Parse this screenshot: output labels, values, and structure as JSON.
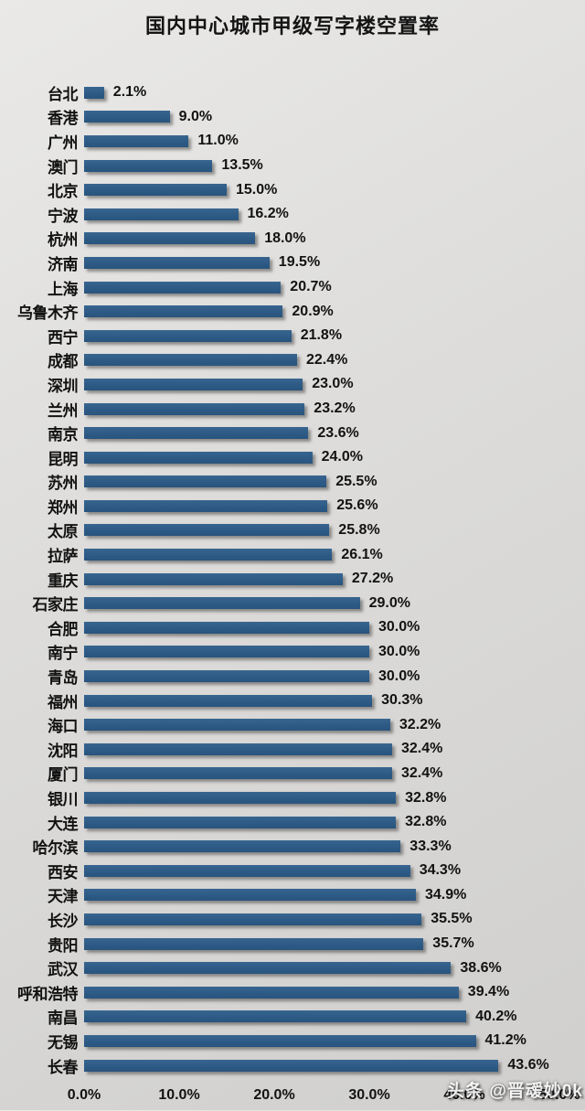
{
  "title": "国内中心城市甲级写字楼空置率",
  "watermark": "头条 @晋叆妙0k",
  "colors": {
    "bar": "#2d5b86",
    "background": "#dedddb",
    "text": "#121212"
  },
  "chart_data": {
    "type": "bar",
    "orientation": "horizontal",
    "title": "国内中心城市甲级写字楼空置率",
    "xlabel": "",
    "ylabel": "",
    "xlim": [
      0,
      50
    ],
    "x_ticks": [
      "0.0%",
      "10.0%",
      "20.0%",
      "30.0%",
      "40.0%",
      "50.0%"
    ],
    "grid": false,
    "legend": false,
    "value_suffix": "%",
    "categories": [
      "台北",
      "香港",
      "广州",
      "澳门",
      "北京",
      "宁波",
      "杭州",
      "济南",
      "上海",
      "乌鲁木齐",
      "西宁",
      "成都",
      "深圳",
      "兰州",
      "南京",
      "昆明",
      "苏州",
      "郑州",
      "太原",
      "拉萨",
      "重庆",
      "石家庄",
      "合肥",
      "南宁",
      "青岛",
      "福州",
      "海口",
      "沈阳",
      "厦门",
      "银川",
      "大连",
      "哈尔滨",
      "西安",
      "天津",
      "长沙",
      "贵阳",
      "武汉",
      "呼和浩特",
      "南昌",
      "无锡",
      "长春"
    ],
    "values": [
      2.1,
      9.0,
      11.0,
      13.5,
      15.0,
      16.2,
      18.0,
      19.5,
      20.7,
      20.9,
      21.8,
      22.4,
      23.0,
      23.2,
      23.6,
      24.0,
      25.5,
      25.6,
      25.8,
      26.1,
      27.2,
      29.0,
      30.0,
      30.0,
      30.0,
      30.3,
      32.2,
      32.4,
      32.4,
      32.8,
      32.8,
      33.3,
      34.3,
      34.9,
      35.5,
      35.7,
      38.6,
      39.4,
      40.2,
      41.2,
      43.6
    ]
  }
}
